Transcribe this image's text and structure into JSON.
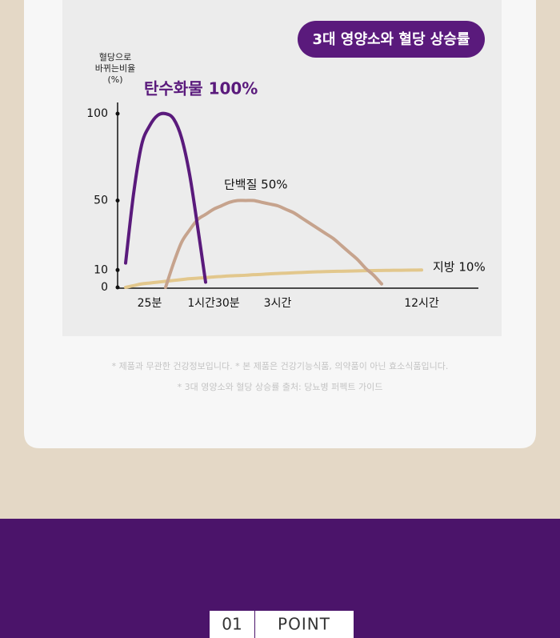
{
  "chart_data": {
    "type": "line",
    "title": "3대 영양소와 혈당 상승률",
    "ylabel": [
      "혈당으로",
      "바뀌는비율",
      "(%)"
    ],
    "categories": [
      null,
      null,
      null,
      null,
      "25분",
      null,
      null,
      null,
      null,
      null,
      null,
      null,
      "1시간30분",
      null,
      null,
      null,
      null,
      null,
      null,
      null,
      "3시간",
      null,
      null,
      null,
      null,
      null,
      null,
      null,
      null,
      null,
      null,
      null,
      null,
      null,
      null,
      null,
      null,
      null,
      "12시간",
      null,
      null,
      null,
      null,
      null,
      null
    ],
    "ylim": [
      0,
      100
    ],
    "yticks": [
      0,
      10,
      50,
      100
    ],
    "series": [
      {
        "name": "탄수화물 100%",
        "color": "#5a1a7c",
        "values": [
          null,
          14,
          54,
          82,
          93,
          99,
          100,
          97,
          86,
          65,
          35,
          3,
          null,
          null,
          null,
          null,
          null,
          null,
          null,
          null,
          null,
          null,
          null,
          null,
          null,
          null,
          null,
          null,
          null,
          null,
          null,
          null,
          null,
          null,
          null,
          null,
          null,
          null,
          null,
          null,
          null,
          null,
          null,
          null,
          null
        ]
      },
      {
        "name": "단백질 50%",
        "color": "#c6a38d",
        "values": [
          null,
          null,
          null,
          null,
          null,
          null,
          0,
          14,
          26,
          33,
          39,
          42,
          45,
          47,
          49,
          50,
          50,
          50,
          49,
          48,
          47,
          45,
          43,
          40,
          37,
          34,
          31,
          28,
          24,
          20,
          16,
          11,
          7,
          2,
          null,
          null,
          null,
          null,
          null,
          null,
          null,
          null,
          null,
          null,
          null
        ]
      },
      {
        "name": "지방 10%",
        "color": "#e2c78c",
        "values": [
          null,
          0,
          1,
          2,
          2.5,
          3,
          3.5,
          4,
          4.5,
          5,
          5.3,
          5.6,
          6,
          6.3,
          6.6,
          6.8,
          7,
          7.3,
          7.5,
          7.8,
          8,
          8.2,
          8.4,
          8.6,
          8.8,
          9,
          9.1,
          9.2,
          9.3,
          9.4,
          9.5,
          9.6,
          9.7,
          9.75,
          9.8,
          9.85,
          9.9,
          9.95,
          10,
          null,
          null,
          null,
          null,
          null,
          null
        ]
      }
    ]
  },
  "notes": [
    "* 제품과 무관한 건강정보입니다. * 본 제품은 건강기능식품, 의약품이 아닌 효소식품입니다.",
    "* 3대 영양소와 혈당 상승률 출처: 당뇨병 퍼펙트 가이드"
  ],
  "point": {
    "number": "01",
    "label": "POINT"
  }
}
